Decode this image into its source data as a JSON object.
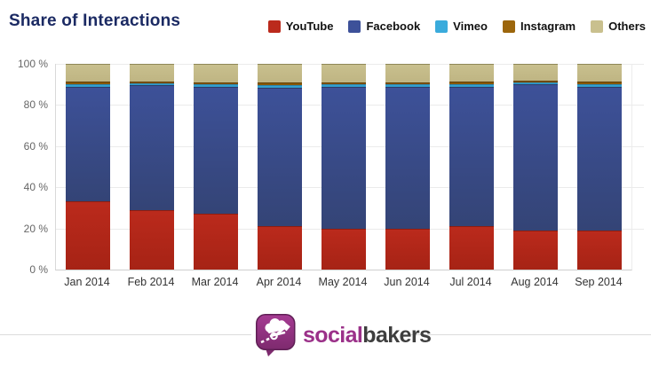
{
  "header": {
    "title": "Share of Interactions"
  },
  "colors": {
    "title_text": "#1b2a63",
    "brand_purple": "#9b3189",
    "brand_dark": "#3e3e3e",
    "axis_text": "#666666",
    "gridline": "#ebebeb"
  },
  "chart_data": {
    "type": "bar",
    "stacked": true,
    "title": "Share of Interactions",
    "categories": [
      "Jan 2014",
      "Feb 2014",
      "Mar 2014",
      "Apr 2014",
      "May 2014",
      "Jun 2014",
      "Jul 2014",
      "Aug 2014",
      "Sep 2014"
    ],
    "series": [
      {
        "name": "YouTube",
        "color": "#bb2a1c",
        "color2": "#a62315",
        "border": "#8f1d10",
        "values": [
          33,
          29,
          27,
          21,
          20,
          20,
          21,
          19,
          19
        ]
      },
      {
        "name": "Facebook",
        "color": "#3d5199",
        "color2": "#344476",
        "border": "#2c3a69",
        "values": [
          56,
          60.5,
          62,
          67.5,
          69,
          69,
          68,
          71,
          70
        ]
      },
      {
        "name": "Vimeo",
        "color": "#3aabdc",
        "color2": "#2f97c6",
        "border": "#2a86b2",
        "values": [
          1,
          1,
          1,
          1,
          1,
          1,
          1,
          1,
          1
        ]
      },
      {
        "name": "Instagram",
        "color": "#9c660c",
        "color2": "#7e5208",
        "border": "#5f3d04",
        "values": [
          1.5,
          1,
          1,
          1.5,
          1,
          1,
          1.5,
          1,
          1.5
        ]
      },
      {
        "name": "Others",
        "color": "#c9c08e",
        "color2": "#bfb583",
        "border": "#8e8757",
        "values": [
          8.5,
          8.5,
          9,
          9,
          9,
          9,
          8.5,
          8,
          8.5
        ]
      }
    ],
    "ylim": [
      0,
      100
    ],
    "yticks": [
      {
        "value": 0,
        "label": "0 %"
      },
      {
        "value": 20,
        "label": "20 %"
      },
      {
        "value": 40,
        "label": "40 %"
      },
      {
        "value": 60,
        "label": "60 %"
      },
      {
        "value": 80,
        "label": "80 %"
      },
      {
        "value": 100,
        "label": "100 %"
      }
    ],
    "grid": true,
    "legend_position": "top-right"
  },
  "footer": {
    "brand": {
      "social": "social",
      "bakers": "bakers"
    },
    "logo_icon": "socialbakers-speech-bubble-chef-icon"
  }
}
